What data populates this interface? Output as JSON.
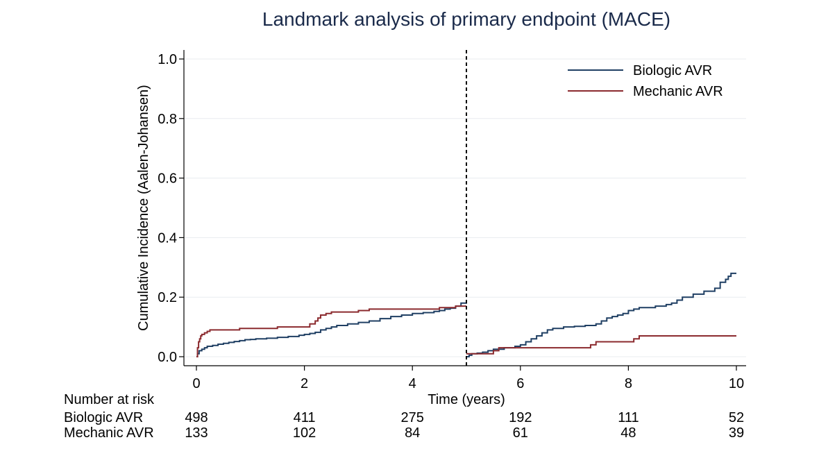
{
  "chart_data": {
    "type": "line",
    "title": "Landmark analysis of primary endpoint (MACE)",
    "xlabel": "Time (years)",
    "ylabel": "Cumulative Incidence (Aalen-Johansen)",
    "xlim": [
      0,
      10
    ],
    "ylim": [
      0,
      1
    ],
    "x_ticks": [
      0,
      2,
      4,
      6,
      8,
      10
    ],
    "y_ticks": [
      0.0,
      0.2,
      0.4,
      0.6,
      0.8,
      1.0
    ],
    "y_tick_labels": [
      "0.0",
      "0.2",
      "0.4",
      "0.6",
      "0.8",
      "1.0"
    ],
    "grid": "horizontal",
    "legend_position": "top-right",
    "landmark_x": 5,
    "series": [
      {
        "name": "Biologic AVR",
        "color": "#1f3f63",
        "segments": [
          [
            [
              0,
              0
            ],
            [
              0.02,
              0.01
            ],
            [
              0.05,
              0.02
            ],
            [
              0.1,
              0.025
            ],
            [
              0.15,
              0.03
            ],
            [
              0.2,
              0.035
            ],
            [
              0.3,
              0.038
            ],
            [
              0.4,
              0.042
            ],
            [
              0.5,
              0.045
            ],
            [
              0.6,
              0.048
            ],
            [
              0.7,
              0.051
            ],
            [
              0.8,
              0.054
            ],
            [
              0.9,
              0.057
            ],
            [
              1.0,
              0.058
            ],
            [
              1.1,
              0.06
            ],
            [
              1.3,
              0.062
            ],
            [
              1.5,
              0.065
            ],
            [
              1.7,
              0.068
            ],
            [
              1.9,
              0.072
            ],
            [
              2.0,
              0.075
            ],
            [
              2.1,
              0.078
            ],
            [
              2.2,
              0.082
            ],
            [
              2.3,
              0.09
            ],
            [
              2.4,
              0.095
            ],
            [
              2.5,
              0.1
            ],
            [
              2.6,
              0.105
            ],
            [
              2.8,
              0.11
            ],
            [
              3.0,
              0.115
            ],
            [
              3.2,
              0.12
            ],
            [
              3.4,
              0.128
            ],
            [
              3.6,
              0.135
            ],
            [
              3.8,
              0.14
            ],
            [
              4.0,
              0.145
            ],
            [
              4.2,
              0.148
            ],
            [
              4.4,
              0.152
            ],
            [
              4.5,
              0.155
            ],
            [
              4.6,
              0.16
            ],
            [
              4.7,
              0.163
            ],
            [
              4.8,
              0.17
            ],
            [
              4.9,
              0.18
            ],
            [
              5.0,
              0.19
            ]
          ],
          [
            [
              5.0,
              0.0
            ],
            [
              5.05,
              0.005
            ],
            [
              5.1,
              0.01
            ],
            [
              5.2,
              0.012
            ],
            [
              5.3,
              0.015
            ],
            [
              5.4,
              0.02
            ],
            [
              5.5,
              0.025
            ],
            [
              5.7,
              0.03
            ],
            [
              5.9,
              0.035
            ],
            [
              6.0,
              0.04
            ],
            [
              6.1,
              0.05
            ],
            [
              6.2,
              0.06
            ],
            [
              6.3,
              0.07
            ],
            [
              6.4,
              0.08
            ],
            [
              6.5,
              0.09
            ],
            [
              6.6,
              0.095
            ],
            [
              6.8,
              0.1
            ],
            [
              7.0,
              0.102
            ],
            [
              7.2,
              0.105
            ],
            [
              7.4,
              0.11
            ],
            [
              7.5,
              0.12
            ],
            [
              7.6,
              0.13
            ],
            [
              7.7,
              0.135
            ],
            [
              7.8,
              0.14
            ],
            [
              7.9,
              0.145
            ],
            [
              8.0,
              0.155
            ],
            [
              8.1,
              0.16
            ],
            [
              8.2,
              0.165
            ],
            [
              8.5,
              0.17
            ],
            [
              8.7,
              0.175
            ],
            [
              8.8,
              0.18
            ],
            [
              8.9,
              0.19
            ],
            [
              9.0,
              0.2
            ],
            [
              9.2,
              0.21
            ],
            [
              9.4,
              0.22
            ],
            [
              9.6,
              0.23
            ],
            [
              9.7,
              0.25
            ],
            [
              9.8,
              0.26
            ],
            [
              9.85,
              0.27
            ],
            [
              9.9,
              0.28
            ],
            [
              10.0,
              0.28
            ]
          ]
        ]
      },
      {
        "name": "Mechanic AVR",
        "color": "#8b2a2e",
        "segments": [
          [
            [
              0,
              0
            ],
            [
              0.02,
              0.03
            ],
            [
              0.04,
              0.05
            ],
            [
              0.06,
              0.06
            ],
            [
              0.08,
              0.07
            ],
            [
              0.1,
              0.075
            ],
            [
              0.15,
              0.08
            ],
            [
              0.2,
              0.085
            ],
            [
              0.25,
              0.09
            ],
            [
              0.3,
              0.09
            ],
            [
              0.8,
              0.095
            ],
            [
              1.5,
              0.1
            ],
            [
              2.1,
              0.11
            ],
            [
              2.2,
              0.12
            ],
            [
              2.25,
              0.13
            ],
            [
              2.3,
              0.14
            ],
            [
              2.4,
              0.145
            ],
            [
              2.5,
              0.15
            ],
            [
              3.0,
              0.155
            ],
            [
              3.2,
              0.16
            ],
            [
              4.5,
              0.165
            ],
            [
              4.8,
              0.17
            ],
            [
              5.0,
              0.17
            ]
          ],
          [
            [
              5.0,
              0.01
            ],
            [
              5.5,
              0.02
            ],
            [
              5.6,
              0.03
            ],
            [
              7.3,
              0.04
            ],
            [
              7.4,
              0.05
            ],
            [
              8.1,
              0.06
            ],
            [
              8.2,
              0.07
            ],
            [
              10.0,
              0.07
            ]
          ]
        ]
      }
    ],
    "risk_table": {
      "header": "Number at risk",
      "rows": [
        {
          "label": "Biologic AVR",
          "values": [
            "498",
            "411",
            "275",
            "192",
            "111",
            "52"
          ]
        },
        {
          "label": "Mechanic AVR",
          "values": [
            "133",
            "102",
            "84",
            "61",
            "48",
            "39"
          ]
        }
      ]
    }
  }
}
